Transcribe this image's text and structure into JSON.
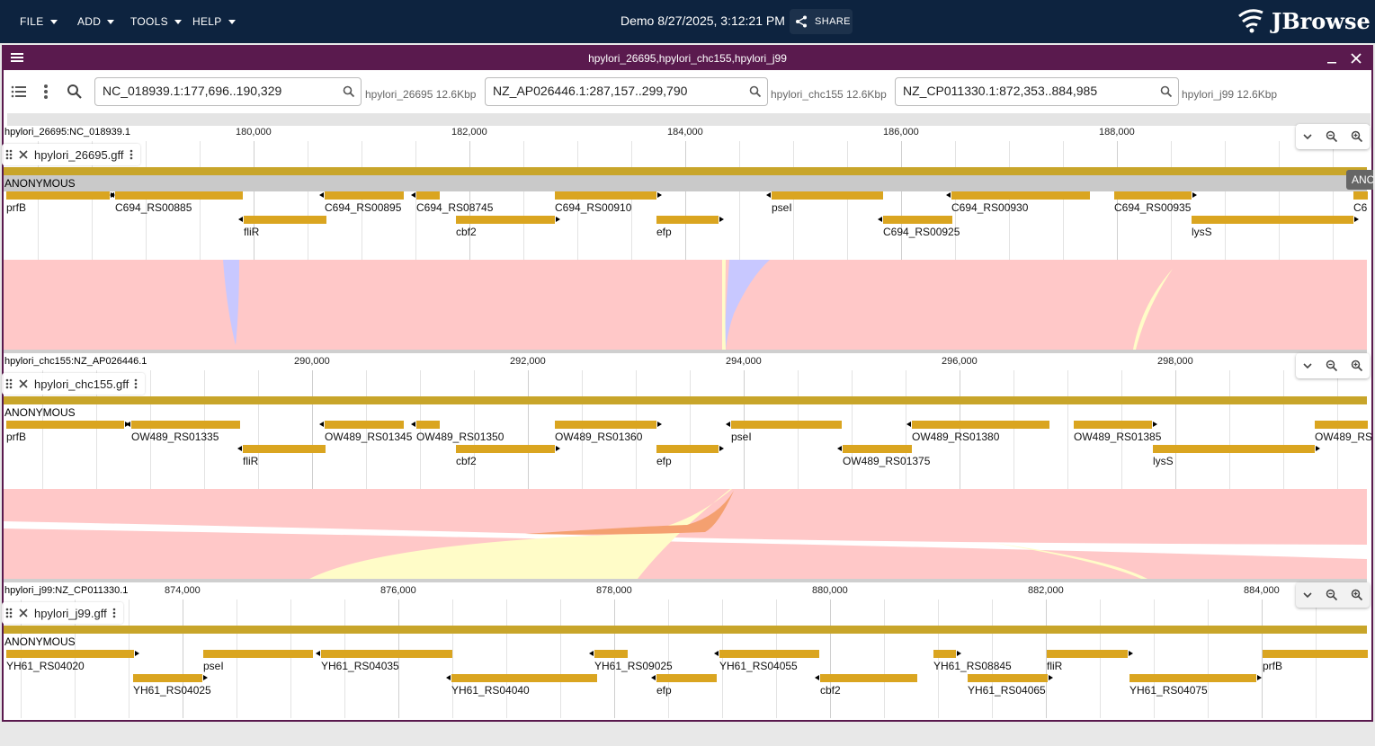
{
  "menu": [
    {
      "label": "FILE"
    },
    {
      "label": "ADD"
    },
    {
      "label": "TOOLS"
    },
    {
      "label": "HELP"
    }
  ],
  "session": {
    "name": "Demo 8/27/2025, 3:12:21 PM",
    "share_label": "SHARE"
  },
  "logo": {
    "text": "JBrowse"
  },
  "view": {
    "title": "hpylori_26695,hpylori_chc155,hpylori_j99",
    "locations": [
      {
        "value": "NC_018939.1:177,696..190,329",
        "assembly": "hpylori_26695 12.6Kbp"
      },
      {
        "value": "NZ_AP026446.1:287,157..299,790",
        "assembly": "hpylori_chc155 12.6Kbp"
      },
      {
        "value": "NZ_CP011330.1:872,353..884,985",
        "assembly": "hpylori_j99 12.6Kbp"
      }
    ]
  },
  "panels": [
    {
      "ref": "hpylori_26695:NC_018939.1",
      "ticks": [
        "180,000",
        "182,000",
        "184,000",
        "186,000",
        "188,000"
      ],
      "track": "hpylori_26695.gff",
      "anon": "ANONYMOUS",
      "overflow": "ANC",
      "features": [
        {
          "label": "prfB"
        },
        {
          "label": "C694_RS00885"
        },
        {
          "label": "C694_RS00895"
        },
        {
          "label": "C694_RS08745"
        },
        {
          "label": "C694_RS00910"
        },
        {
          "label": "pseI"
        },
        {
          "label": "C694_RS00930"
        },
        {
          "label": "C694_RS00935"
        },
        {
          "label": "C6"
        },
        {
          "label": "fliR"
        },
        {
          "label": "cbf2"
        },
        {
          "label": "efp"
        },
        {
          "label": "C694_RS00925"
        },
        {
          "label": "lysS"
        }
      ]
    },
    {
      "ref": "hpylori_chc155:NZ_AP026446.1",
      "ticks": [
        "290,000",
        "292,000",
        "294,000",
        "296,000",
        "298,000"
      ],
      "track": "hpylori_chc155.gff",
      "anon": "ANONYMOUS",
      "features": [
        {
          "label": "prfB"
        },
        {
          "label": "OW489_RS01335"
        },
        {
          "label": "OW489_RS01345"
        },
        {
          "label": "OW489_RS01350"
        },
        {
          "label": "OW489_RS01360"
        },
        {
          "label": "pseI"
        },
        {
          "label": "OW489_RS01380"
        },
        {
          "label": "OW489_RS01385"
        },
        {
          "label": "OW489_RS"
        },
        {
          "label": "fliR"
        },
        {
          "label": "cbf2"
        },
        {
          "label": "efp"
        },
        {
          "label": "OW489_RS01375"
        },
        {
          "label": "lysS"
        }
      ]
    },
    {
      "ref": "hpylori_j99:NZ_CP011330.1",
      "ticks": [
        "874,000",
        "876,000",
        "878,000",
        "880,000",
        "882,000",
        "884,000"
      ],
      "track": "hpylori_j99.gff",
      "anon": "ANONYMOUS",
      "features": [
        {
          "label": "YH61_RS04020"
        },
        {
          "label": "pseI"
        },
        {
          "label": "YH61_RS04035"
        },
        {
          "label": "YH61_RS09025"
        },
        {
          "label": "YH61_RS04055"
        },
        {
          "label": "YH61_RS08845"
        },
        {
          "label": "fliR"
        },
        {
          "label": "prfB"
        },
        {
          "label": "YH61_RS04025"
        },
        {
          "label": "YH61_RS04040"
        },
        {
          "label": "efp"
        },
        {
          "label": "cbf2"
        },
        {
          "label": "YH61_RS04065"
        },
        {
          "label": "YH61_RS04075"
        }
      ]
    }
  ],
  "colors": {
    "appbar": "#0d233f",
    "view_border": "#5a1a4e",
    "feature": "#daa520",
    "synteny_forward": "#ffc8c8",
    "synteny_inverted": "#c8c8ff",
    "synteny_highlight": "#fffcc8"
  }
}
